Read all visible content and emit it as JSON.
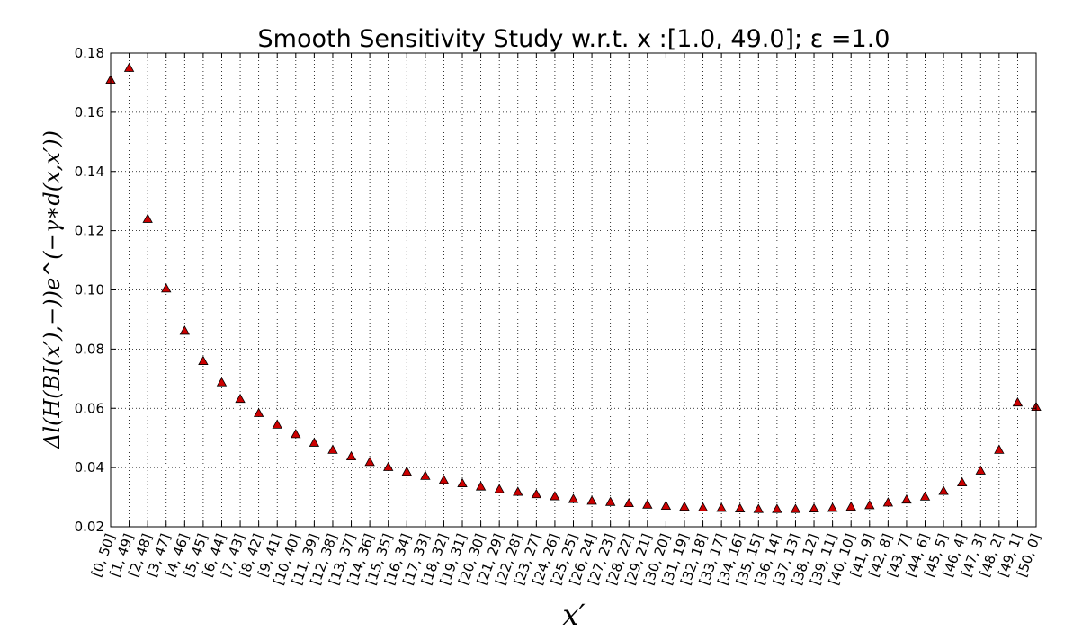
{
  "chart_data": {
    "type": "scatter",
    "title": "Smooth Sensitivity Study w.r.t. x :[1.0, 49.0]; ε =1.0",
    "xlabel": "x′",
    "ylabel": "Δl(H(BI(x′),−))e^(−γ∗d(x,x′))",
    "ylim": [
      0.02,
      0.18
    ],
    "yticks": [
      "0.02",
      "0.04",
      "0.06",
      "0.08",
      "0.10",
      "0.12",
      "0.14",
      "0.16",
      "0.18"
    ],
    "grid": true,
    "marker": "triangle-up",
    "marker_color": "#cc0000",
    "categories": [
      "[0, 50]",
      "[1, 49]",
      "[2, 48]",
      "[3, 47]",
      "[4, 46]",
      "[5, 45]",
      "[6, 44]",
      "[7, 43]",
      "[8, 42]",
      "[9, 41]",
      "[10, 40]",
      "[11, 39]",
      "[12, 38]",
      "[13, 37]",
      "[14, 36]",
      "[15, 35]",
      "[16, 34]",
      "[17, 33]",
      "[18, 32]",
      "[19, 31]",
      "[20, 30]",
      "[21, 29]",
      "[22, 28]",
      "[23, 27]",
      "[24, 26]",
      "[25, 25]",
      "[26, 24]",
      "[27, 23]",
      "[28, 22]",
      "[29, 21]",
      "[30, 20]",
      "[31, 19]",
      "[32, 18]",
      "[33, 17]",
      "[34, 16]",
      "[35, 15]",
      "[36, 14]",
      "[37, 13]",
      "[38, 12]",
      "[39, 11]",
      "[40, 10]",
      "[41, 9]",
      "[42, 8]",
      "[43, 7]",
      "[44, 6]",
      "[45, 5]",
      "[46, 4]",
      "[47, 3]",
      "[48, 2]",
      "[49, 1]",
      "[50, 0]"
    ],
    "values": [
      0.171,
      0.175,
      0.124,
      0.1005,
      0.0862,
      0.076,
      0.0688,
      0.0632,
      0.0584,
      0.0545,
      0.0513,
      0.0484,
      0.046,
      0.0438,
      0.0419,
      0.0402,
      0.0386,
      0.0372,
      0.0358,
      0.0347,
      0.0336,
      0.0327,
      0.0318,
      0.031,
      0.0303,
      0.0294,
      0.0288,
      0.0284,
      0.028,
      0.0275,
      0.0271,
      0.0268,
      0.0265,
      0.0264,
      0.0262,
      0.026,
      0.026,
      0.026,
      0.0262,
      0.0264,
      0.0268,
      0.0273,
      0.0282,
      0.0292,
      0.0302,
      0.0321,
      0.035,
      0.039,
      0.046,
      0.062,
      0.0605
    ]
  }
}
